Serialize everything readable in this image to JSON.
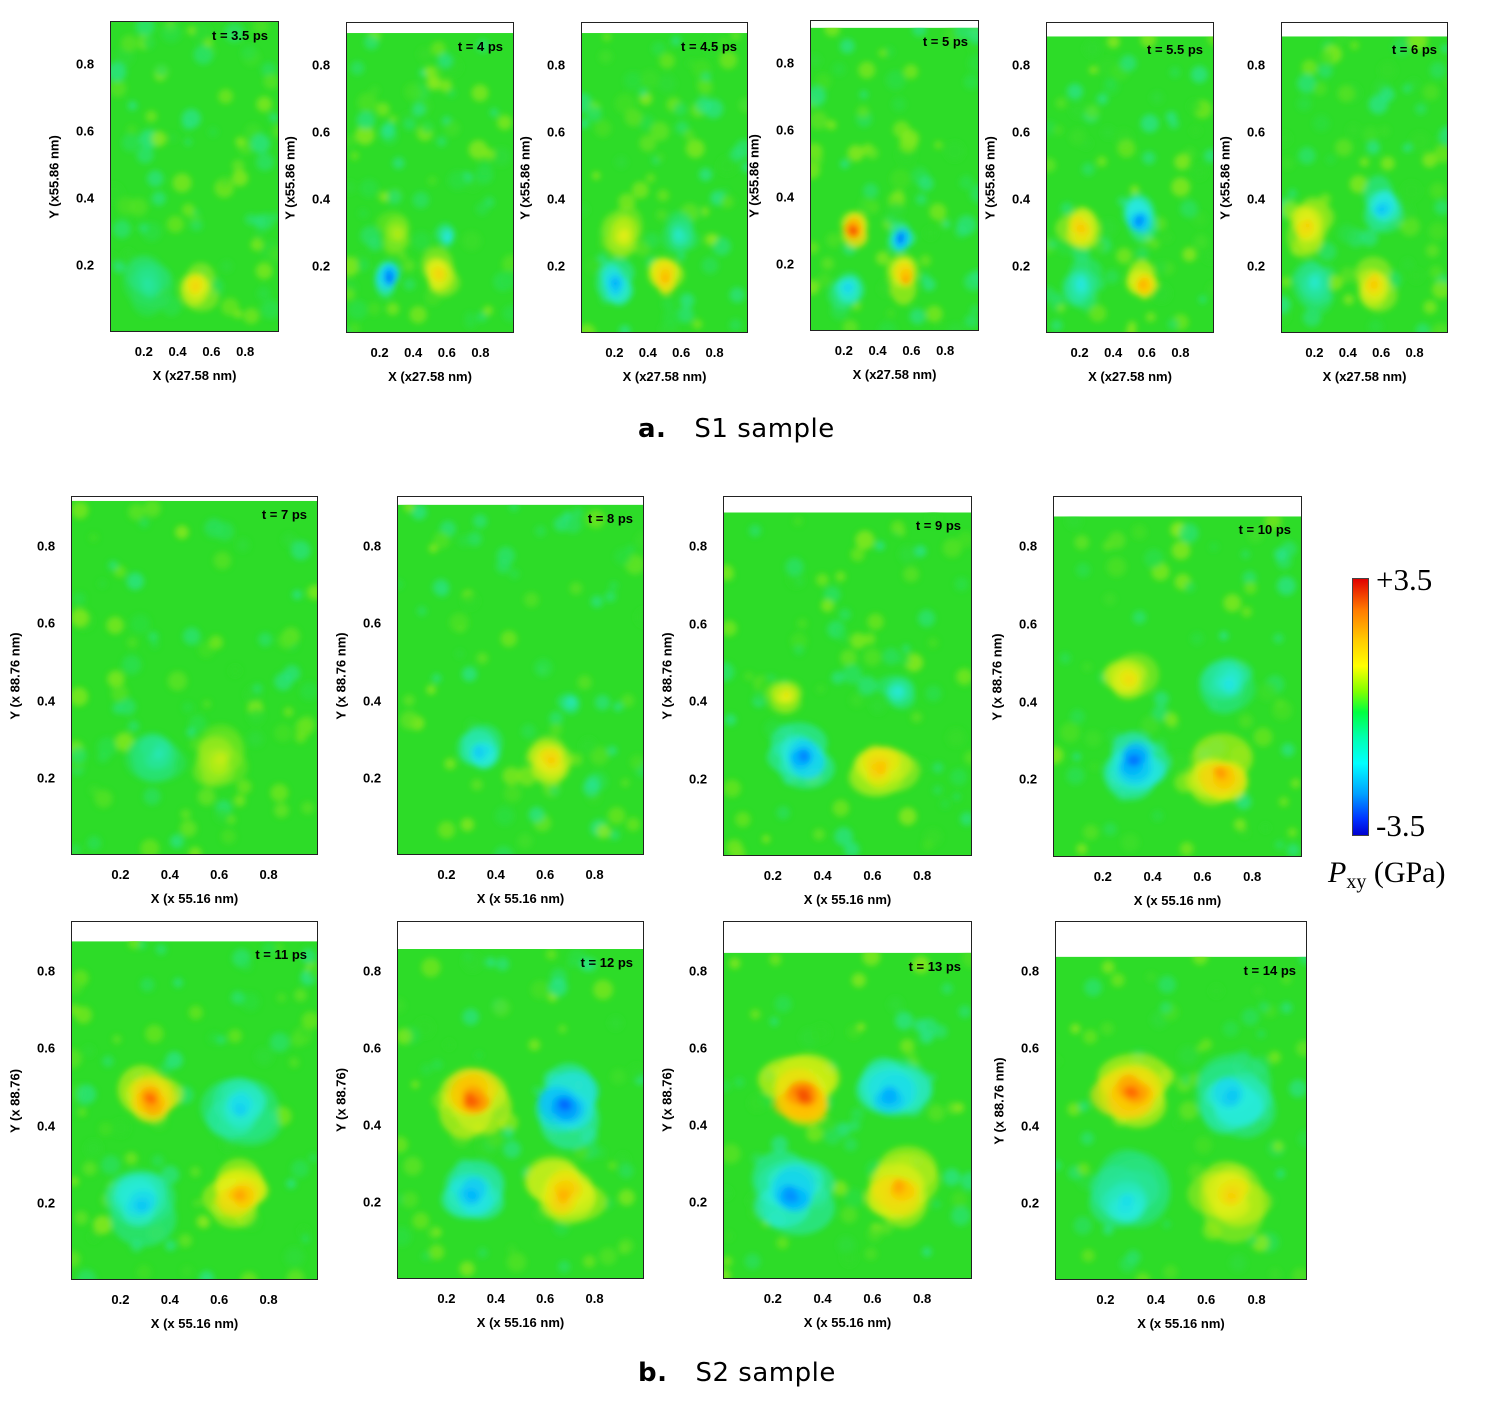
{
  "chart_data": {
    "type": "heatmap",
    "quantity": "P_xy",
    "colorbar": {
      "max_label": "+3.5",
      "min_label": "-3.5",
      "title_main": "P",
      "title_sub": "xy",
      "title_unit": "(GPa)",
      "range": [
        -3.5,
        3.5
      ],
      "colormap": "rainbow (blue = -3.5, green = 0, red = +3.5)"
    },
    "groups": [
      {
        "letter": "a.",
        "label": "S1 sample",
        "xlabel": "X (x27.58 nm)",
        "ylabel": "Y (x55.86 nm)",
        "xticks": [
          "0.2",
          "0.4",
          "0.6",
          "0.8"
        ],
        "yticks": [
          "0.2",
          "0.4",
          "0.6",
          "0.8"
        ],
        "panels": [
          {
            "t": "t = 3.5 ps",
            "y_top": 0.93,
            "features": [
              [
                0.5,
                0.14,
                0.09,
                1.8
              ],
              [
                0.22,
                0.15,
                0.12,
                -0.8
              ]
            ]
          },
          {
            "t": "t = 4 ps",
            "y_top": 0.9,
            "features": [
              [
                0.25,
                0.17,
                0.07,
                -2.6
              ],
              [
                0.55,
                0.18,
                0.09,
                1.8
              ],
              [
                0.6,
                0.29,
                0.05,
                -1.4
              ],
              [
                0.3,
                0.3,
                0.08,
                0.9
              ]
            ]
          },
          {
            "t": "t = 4.5 ps",
            "y_top": 0.9,
            "features": [
              [
                0.2,
                0.15,
                0.09,
                -2.0
              ],
              [
                0.5,
                0.17,
                0.09,
                2.2
              ],
              [
                0.25,
                0.3,
                0.1,
                1.3
              ],
              [
                0.58,
                0.3,
                0.08,
                -1.1
              ]
            ]
          },
          {
            "t": "t = 5 ps",
            "y_top": 0.91,
            "features": [
              [
                0.25,
                0.3,
                0.07,
                3.2
              ],
              [
                0.53,
                0.28,
                0.06,
                -2.6
              ],
              [
                0.56,
                0.16,
                0.08,
                2.4
              ],
              [
                0.22,
                0.13,
                0.08,
                -1.6
              ]
            ]
          },
          {
            "t": "t = 5.5 ps",
            "y_top": 0.89,
            "features": [
              [
                0.2,
                0.32,
                0.1,
                2.0
              ],
              [
                0.55,
                0.34,
                0.09,
                -2.3
              ],
              [
                0.57,
                0.15,
                0.08,
                2.3
              ],
              [
                0.2,
                0.15,
                0.09,
                -1.3
              ]
            ]
          },
          {
            "t": "t = 6 ps",
            "y_top": 0.89,
            "features": [
              [
                0.15,
                0.33,
                0.11,
                1.8
              ],
              [
                0.6,
                0.38,
                0.1,
                -1.8
              ],
              [
                0.55,
                0.15,
                0.09,
                2.0
              ],
              [
                0.2,
                0.15,
                0.1,
                -1.1
              ]
            ]
          }
        ]
      },
      {
        "letter": "b.",
        "label": "S2 sample",
        "xlabel": "X (x 55.16 nm)",
        "xticks": [
          "0.2",
          "0.4",
          "0.6",
          "0.8"
        ],
        "yticks": [
          "0.2",
          "0.4",
          "0.6",
          "0.8"
        ],
        "panels": [
          {
            "t": "t = 7 ps",
            "ylabel": "Y (x 88.76 nm)",
            "y_top": 0.92,
            "features": [
              [
                0.35,
                0.26,
                0.1,
                -0.9
              ],
              [
                0.6,
                0.25,
                0.1,
                1.0
              ]
            ]
          },
          {
            "t": "t = 8 ps",
            "ylabel": "Y (x 88.76 nm)",
            "y_top": 0.91,
            "features": [
              [
                0.33,
                0.27,
                0.08,
                -1.7
              ],
              [
                0.62,
                0.25,
                0.08,
                1.9
              ],
              [
                0.7,
                0.4,
                0.04,
                -1.0
              ]
            ]
          },
          {
            "t": "t = 9 ps",
            "ylabel": "Y (x 88.76 nm)",
            "y_top": 0.89,
            "features": [
              [
                0.32,
                0.26,
                0.1,
                -2.3
              ],
              [
                0.63,
                0.23,
                0.1,
                2.1
              ],
              [
                0.25,
                0.42,
                0.06,
                1.4
              ],
              [
                0.7,
                0.43,
                0.06,
                -1.2
              ]
            ]
          },
          {
            "t": "t = 10 ps",
            "ylabel": "Y (x 88.76 nm)",
            "y_top": 0.88,
            "features": [
              [
                0.32,
                0.25,
                0.11,
                -2.4
              ],
              [
                0.67,
                0.22,
                0.11,
                2.4
              ],
              [
                0.3,
                0.46,
                0.09,
                1.6
              ],
              [
                0.7,
                0.45,
                0.1,
                -1.3
              ]
            ]
          },
          {
            "t": "t = 11 ps",
            "ylabel": "Y (x 88.76)",
            "y_top": 0.88,
            "features": [
              [
                0.32,
                0.47,
                0.1,
                2.8
              ],
              [
                0.68,
                0.45,
                0.12,
                -1.6
              ],
              [
                0.28,
                0.2,
                0.12,
                -1.7
              ],
              [
                0.68,
                0.22,
                0.11,
                2.3
              ]
            ]
          },
          {
            "t": "t = 12 ps",
            "ylabel": "Y (x 88.76)",
            "y_top": 0.86,
            "features": [
              [
                0.3,
                0.47,
                0.12,
                2.9
              ],
              [
                0.67,
                0.46,
                0.12,
                -2.5
              ],
              [
                0.3,
                0.22,
                0.12,
                -1.9
              ],
              [
                0.67,
                0.22,
                0.12,
                2.2
              ]
            ]
          },
          {
            "t": "t = 13 ps",
            "ylabel": "Y (x 88.76)",
            "y_top": 0.85,
            "features": [
              [
                0.32,
                0.48,
                0.13,
                3.0
              ],
              [
                0.67,
                0.48,
                0.13,
                -2.0
              ],
              [
                0.27,
                0.22,
                0.13,
                -2.2
              ],
              [
                0.7,
                0.24,
                0.12,
                2.3
              ]
            ]
          },
          {
            "t": "t = 14 ps",
            "ylabel": "Y (x 88.76 nm)",
            "y_top": 0.84,
            "features": [
              [
                0.3,
                0.49,
                0.13,
                2.8
              ],
              [
                0.7,
                0.48,
                0.14,
                -1.7
              ],
              [
                0.28,
                0.2,
                0.14,
                -1.4
              ],
              [
                0.7,
                0.22,
                0.13,
                1.8
              ]
            ]
          }
        ]
      }
    ]
  }
}
